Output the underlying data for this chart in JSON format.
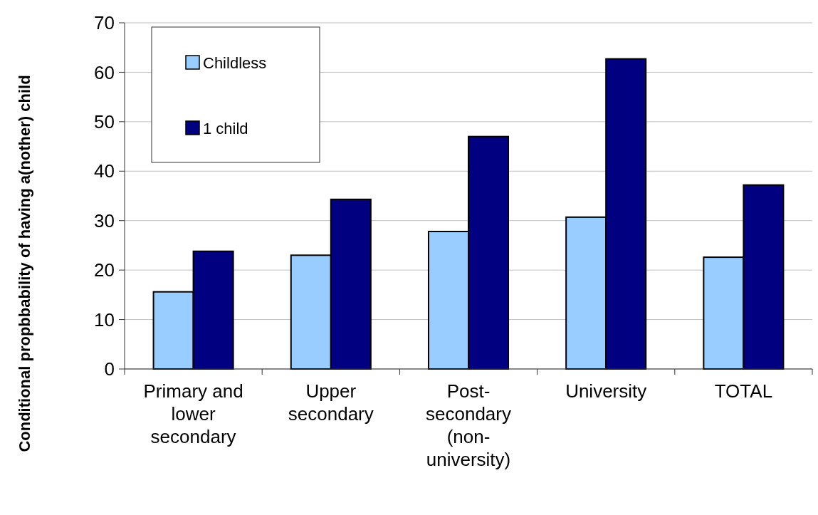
{
  "chart_data": {
    "type": "bar",
    "ylabel": "Conditional propbbability of having a(nother) child",
    "categories": [
      "Primary and lower secondary",
      "Upper secondary",
      "Post-secondary (non-university)",
      "University",
      "TOTAL"
    ],
    "series": [
      {
        "name": "Childless",
        "color": "#99ccff",
        "values": [
          15.6,
          23.0,
          27.8,
          30.7,
          22.6
        ]
      },
      {
        "name": "1 child",
        "color": "#000080",
        "values": [
          23.8,
          34.3,
          47.0,
          62.7,
          37.2
        ]
      }
    ],
    "ylim": [
      0,
      70
    ],
    "yticks": [
      0,
      10,
      20,
      30,
      40,
      50,
      60,
      70
    ],
    "grid": "y",
    "legend": "top left"
  }
}
